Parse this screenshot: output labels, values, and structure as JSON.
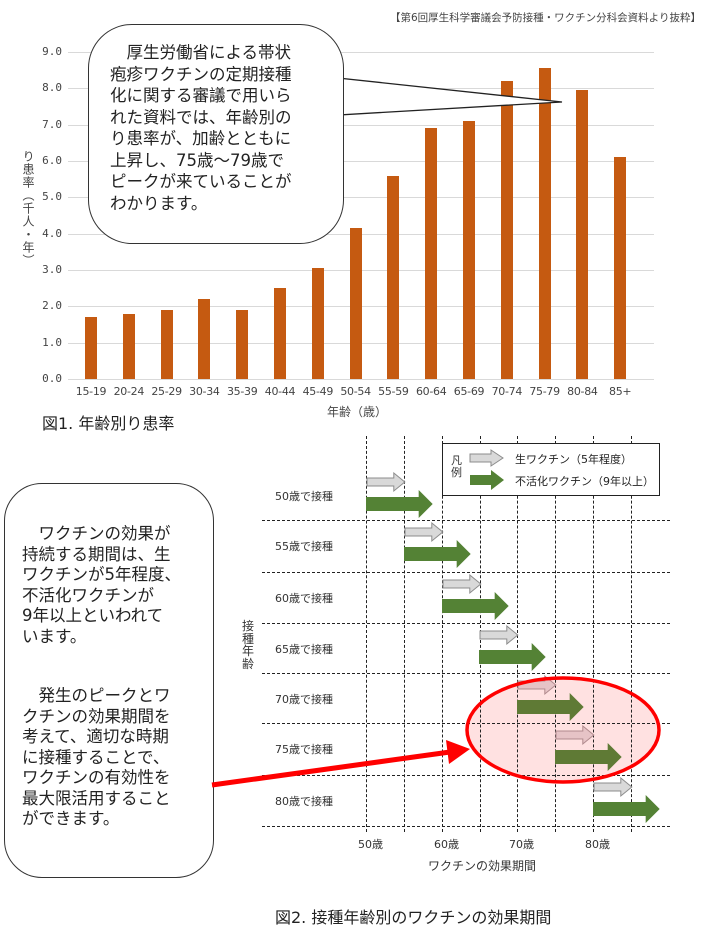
{
  "source_note": "【第6回厚生科学審議会予防接種・ワクチン分科会資料より抜粋】",
  "figure1": {
    "caption": "図1. 年齢別り患率",
    "bubble_text": "　厚生労働省による帯状疱疹ワクチンの定期接種化に関する審議で用いられた資料では、年齢別のり患率が、加齢とともに上昇し、75歳～79歳でピークが来ていることがわかります。",
    "bubble_lines": [
      "　厚生労働省による帯状",
      "疱疹ワクチンの定期接種",
      "化に関する審議で用いら",
      "れた資料では、年齢別の",
      "り患率が、加齢とともに",
      "上昇し、75歳～79歳で",
      "ピークが来ていることが",
      "わかります。"
    ]
  },
  "chart_data": [
    {
      "type": "bar",
      "title": "図1. 年齢別り患率",
      "xlabel": "年齢（歳）",
      "ylabel": "り患率（千人・年）",
      "ylim": [
        0,
        9
      ],
      "yticks": [
        "0.0",
        "1.0",
        "2.0",
        "3.0",
        "4.0",
        "5.0",
        "6.0",
        "7.0",
        "8.0",
        "9.0"
      ],
      "grid": true,
      "color": "#c55a11",
      "categories": [
        "15-19",
        "20-24",
        "25-29",
        "30-34",
        "35-39",
        "40-44",
        "45-49",
        "50-54",
        "55-59",
        "60-64",
        "65-69",
        "70-74",
        "75-79",
        "80-84",
        "85+"
      ],
      "values": [
        1.7,
        1.8,
        1.9,
        2.2,
        1.9,
        2.5,
        3.05,
        4.15,
        5.6,
        6.9,
        7.1,
        8.2,
        8.55,
        7.95,
        6.1
      ],
      "annotation": "75-79歳でピーク"
    },
    {
      "type": "diagram",
      "title": "図2. 接種年齢別のワクチンの効果期間",
      "xlabel": "ワクチンの効果期間",
      "ylabel": "接種年齢",
      "xticks": [
        "50歳",
        "60歳",
        "70歳",
        "80歳"
      ],
      "rows": [
        "50歳で接種",
        "55歳で接種",
        "60歳で接種",
        "65歳で接種",
        "70歳で接種",
        "75歳で接種",
        "80歳で接種"
      ],
      "series": [
        {
          "name": "生ワクチン（5年程度）",
          "duration_years": 5,
          "color": "#d9d9d9"
        },
        {
          "name": "不活化ワクチン（9年以上）",
          "duration_years": 9,
          "color": "#548235"
        }
      ],
      "highlight_rows": [
        "70歳で接種",
        "75歳で接種"
      ]
    }
  ],
  "figure2": {
    "caption": "図2. 接種年齢別のワクチンの効果期間",
    "ylabel": "接種年齢",
    "xlabel": "ワクチンの効果期間",
    "xticks": [
      "50歳",
      "60歳",
      "70歳",
      "80歳"
    ],
    "rows": [
      "50歳で接種",
      "55歳で接種",
      "60歳で接種",
      "65歳で接種",
      "70歳で接種",
      "75歳で接種",
      "80歳で接種"
    ],
    "legend": {
      "title": "凡例",
      "live": "生ワクチン（5年程度）",
      "inactivated": "不活化ワクチン（9年以上）"
    },
    "bubble_para1": [
      "　ワクチンの効果が",
      "持続する期間は、生",
      "ワクチンが5年程度、",
      "不活化ワクチンが",
      "9年以上といわれて",
      "います。"
    ],
    "bubble_para2": [
      "　発生のピークとワ",
      "クチンの効果期間を",
      "考えて、適切な時期",
      "に接種することで、",
      "ワクチンの有効性を",
      "最大限活用すること",
      "ができます。"
    ]
  },
  "colors": {
    "bar": "#c55a11",
    "live_arrow": "#d9d9d9",
    "inactivated_arrow": "#548235",
    "highlight": "#ff0000"
  }
}
